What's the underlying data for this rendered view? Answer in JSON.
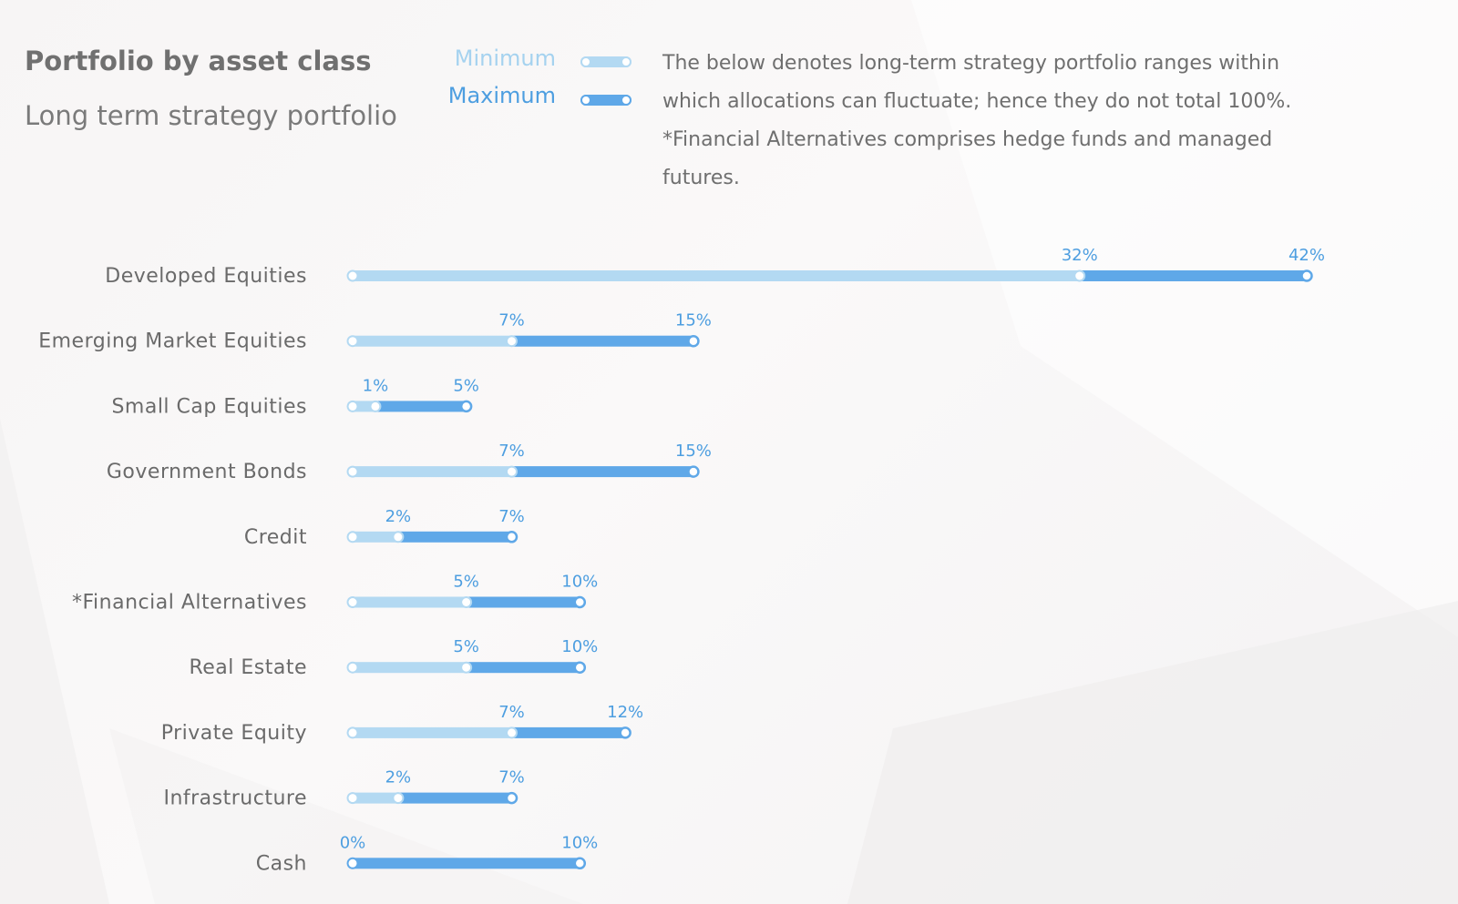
{
  "title": "Portfolio by asset class",
  "subtitle": "Long term strategy portfolio",
  "legend": [
    {
      "label": "Minimum",
      "color": "#b3d9f2",
      "label_color": "#a5d2ef"
    },
    {
      "label": "Maximum",
      "color": "#5fa8e8",
      "label_color": "#4d9ee0"
    }
  ],
  "note": [
    "The below denotes long-term strategy portfolio ranges within which allocations can fluctuate; hence they do not total 100%.",
    "*Financial Alternatives comprises hedge funds and managed futures."
  ],
  "colors": {
    "min_bar": "#b3d9f2",
    "max_bar": "#5fa8e8",
    "value_label": "#4d9ee0",
    "category_label": "#6a6a6a"
  },
  "chart_data": {
    "type": "bar",
    "categories": [
      "Developed Equities",
      "Emerging Market Equities",
      "Small Cap Equities",
      "Government Bonds",
      "Credit",
      "*Financial Alternatives",
      "Real Estate",
      "Private Equity",
      "Infrastructure",
      "Cash"
    ],
    "series": [
      {
        "name": "Minimum",
        "values": [
          32,
          7,
          1,
          7,
          2,
          5,
          5,
          7,
          2,
          0
        ]
      },
      {
        "name": "Maximum",
        "values": [
          42,
          15,
          5,
          15,
          7,
          10,
          10,
          12,
          7,
          10
        ]
      }
    ],
    "value_labels": {
      "min": [
        "32%",
        "7%",
        "1%",
        "7%",
        "2%",
        "5%",
        "5%",
        "7%",
        "2%",
        "0%"
      ],
      "max": [
        "42%",
        "15%",
        "5%",
        "15%",
        "7%",
        "10%",
        "10%",
        "12%",
        "7%",
        "10%"
      ]
    },
    "orientation": "horizontal",
    "xlim": [
      0,
      42
    ],
    "grid": false,
    "legend_position": "top"
  }
}
